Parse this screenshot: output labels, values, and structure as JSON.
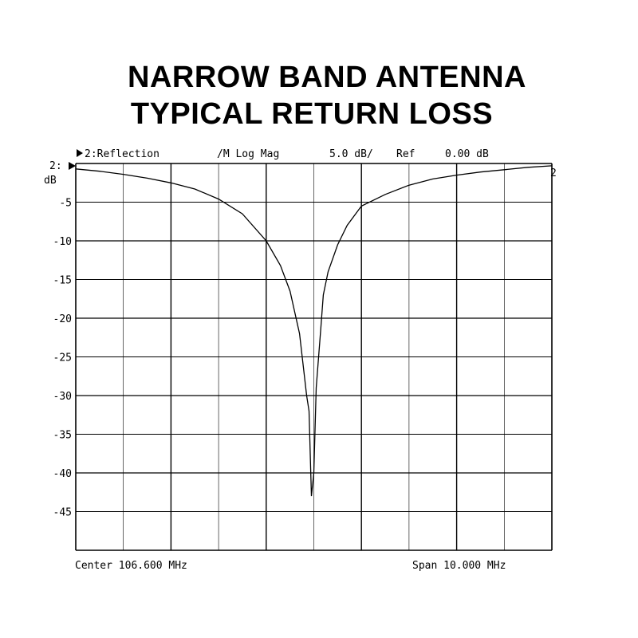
{
  "title_lines": [
    "NARROW BAND ANTENNA",
    "TYPICAL RETURN LOSS"
  ],
  "header": {
    "channel": "2:Reflection",
    "format": "/M Log Mag",
    "scale": "5.0 dB/",
    "ref_label": "Ref",
    "ref_value": "0.00 dB"
  },
  "ref_marker": "2:",
  "y_unit": "dB",
  "trace_end_label": "2",
  "footer": {
    "center": "Center 106.600 MHz",
    "span": "Span 10.000 MHz"
  },
  "chart_data": {
    "type": "line",
    "x_unit": "MHz",
    "y_unit": "dB",
    "xlim": [
      101.6,
      111.6
    ],
    "ylim": [
      -50,
      0
    ],
    "y_ticks": [
      -5,
      -10,
      -15,
      -20,
      -25,
      -30,
      -35,
      -40,
      -45
    ],
    "y_tick_labels": [
      "-5",
      "-10",
      "-15",
      "-20",
      "-25",
      "-30",
      "-35",
      "-40",
      "-45"
    ],
    "x_divisions": 10,
    "y_divisions": 10,
    "grid": true,
    "series": [
      {
        "x": [
          101.6,
          102.1,
          102.6,
          103.1,
          103.6,
          104.1,
          104.6,
          105.1,
          105.6,
          105.9,
          106.1,
          106.3,
          106.45,
          106.5,
          106.55,
          106.6,
          106.65,
          106.7,
          106.75,
          106.8,
          106.9,
          107.1,
          107.3,
          107.6,
          108.1,
          108.6,
          109.1,
          109.6,
          110.1,
          110.6,
          111.1,
          111.6
        ],
        "y": [
          -0.7,
          -1.0,
          -1.4,
          -1.9,
          -2.5,
          -3.3,
          -4.6,
          -6.5,
          -10.0,
          -13.2,
          -16.5,
          -22.0,
          -30.0,
          -32.0,
          -43.0,
          -40.0,
          -29.0,
          -25.0,
          -21.0,
          -17.0,
          -14.0,
          -10.5,
          -8.0,
          -5.5,
          -4.0,
          -2.8,
          -2.0,
          -1.5,
          -1.1,
          -0.8,
          -0.5,
          -0.3
        ]
      }
    ]
  }
}
